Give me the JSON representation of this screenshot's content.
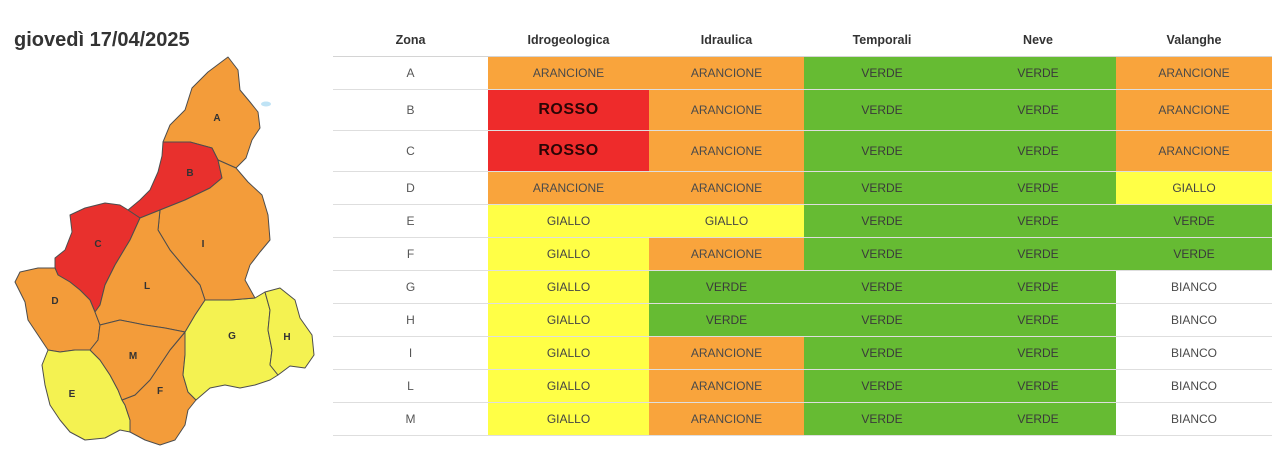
{
  "title": "giovedì 17/04/2025",
  "map": {
    "border_color": "#4d4d4d",
    "zones": [
      {
        "label": "A",
        "color": "#f39c3a"
      },
      {
        "label": "B",
        "color": "#e8302d"
      },
      {
        "label": "C",
        "color": "#e8302d"
      },
      {
        "label": "D",
        "color": "#f39c3a"
      },
      {
        "label": "E",
        "color": "#f4f251"
      },
      {
        "label": "F",
        "color": "#f39c3a"
      },
      {
        "label": "G",
        "color": "#f4f251"
      },
      {
        "label": "H",
        "color": "#f4f251"
      },
      {
        "label": "I",
        "color": "#f39c3a"
      },
      {
        "label": "L",
        "color": "#f39c3a"
      },
      {
        "label": "M",
        "color": "#f39c3a"
      }
    ]
  },
  "levels": {
    "ROSSO": "#ee2b2b",
    "ARANCIONE": "#f9a43c",
    "GIALLO": "#ffff46",
    "VERDE": "#66bb33",
    "BIANCO": "#ffffff"
  },
  "table": {
    "headers": [
      "Zona",
      "Idrogeologica",
      "Idraulica",
      "Temporali",
      "Neve",
      "Valanghe"
    ],
    "rows": [
      {
        "zona": "A",
        "values": [
          "ARANCIONE",
          "ARANCIONE",
          "VERDE",
          "VERDE",
          "ARANCIONE"
        ]
      },
      {
        "zona": "B",
        "values": [
          "ROSSO",
          "ARANCIONE",
          "VERDE",
          "VERDE",
          "ARANCIONE"
        ]
      },
      {
        "zona": "C",
        "values": [
          "ROSSO",
          "ARANCIONE",
          "VERDE",
          "VERDE",
          "ARANCIONE"
        ]
      },
      {
        "zona": "D",
        "values": [
          "ARANCIONE",
          "ARANCIONE",
          "VERDE",
          "VERDE",
          "GIALLO"
        ]
      },
      {
        "zona": "E",
        "values": [
          "GIALLO",
          "GIALLO",
          "VERDE",
          "VERDE",
          "VERDE"
        ]
      },
      {
        "zona": "F",
        "values": [
          "GIALLO",
          "ARANCIONE",
          "VERDE",
          "VERDE",
          "VERDE"
        ]
      },
      {
        "zona": "G",
        "values": [
          "GIALLO",
          "VERDE",
          "VERDE",
          "VERDE",
          "BIANCO"
        ]
      },
      {
        "zona": "H",
        "values": [
          "GIALLO",
          "VERDE",
          "VERDE",
          "VERDE",
          "BIANCO"
        ]
      },
      {
        "zona": "I",
        "values": [
          "GIALLO",
          "ARANCIONE",
          "VERDE",
          "VERDE",
          "BIANCO"
        ]
      },
      {
        "zona": "L",
        "values": [
          "GIALLO",
          "ARANCIONE",
          "VERDE",
          "VERDE",
          "BIANCO"
        ]
      },
      {
        "zona": "M",
        "values": [
          "GIALLO",
          "ARANCIONE",
          "VERDE",
          "VERDE",
          "BIANCO"
        ]
      }
    ]
  }
}
